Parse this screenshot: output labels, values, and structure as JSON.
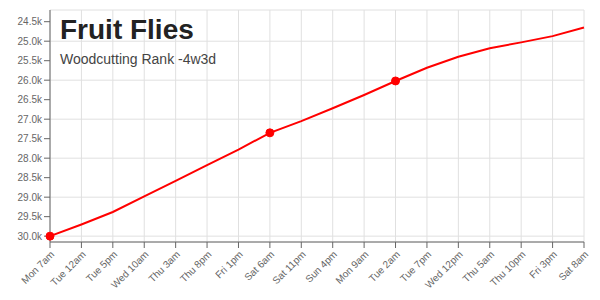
{
  "chart_data": {
    "type": "line",
    "title": "Fruit Flies",
    "subtitle": "Woodcutting Rank -4w3d",
    "categories": [
      "Mon 7am",
      "Tue 12am",
      "Tue 5pm",
      "Wed 10am",
      "Thu 3am",
      "Thu 8pm",
      "Fri 1pm",
      "Sat 6am",
      "Sat 11pm",
      "Sun 4pm",
      "Mon 9am",
      "Tue 2am",
      "Tue 7pm",
      "Wed 12pm",
      "Thu 5am",
      "Thu 10pm",
      "Fri 3pm",
      "Sat 8am"
    ],
    "series": [
      {
        "type": "line",
        "color": "#ff0000",
        "values": [
          30000,
          29700,
          29380,
          28980,
          28580,
          28180,
          27780,
          27350,
          27050,
          26720,
          26380,
          26020,
          25680,
          25400,
          25180,
          25030,
          24870,
          24650
        ]
      },
      {
        "type": "scatter",
        "color": "#ff0000",
        "marker": "circle",
        "values": [
          30000,
          null,
          null,
          null,
          null,
          null,
          null,
          27350,
          null,
          null,
          null,
          26020,
          null,
          null,
          null,
          null,
          null,
          null
        ]
      }
    ],
    "ylim": [
      30150,
      24200
    ],
    "yticks": [
      {
        "value": 24500,
        "label": "24.5k"
      },
      {
        "value": 25000,
        "label": "25.0k"
      },
      {
        "value": 25500,
        "label": "25.5k"
      },
      {
        "value": 26000,
        "label": "26.0k"
      },
      {
        "value": 26500,
        "label": "26.5k"
      },
      {
        "value": 27000,
        "label": "27.0k"
      },
      {
        "value": 27500,
        "label": "27.5k"
      },
      {
        "value": 28000,
        "label": "28.0k"
      },
      {
        "value": 28500,
        "label": "28.5k"
      },
      {
        "value": 29000,
        "label": "29.0k"
      },
      {
        "value": 29500,
        "label": "29.5k"
      },
      {
        "value": 30000,
        "label": "30.0k"
      }
    ],
    "grid": true
  }
}
